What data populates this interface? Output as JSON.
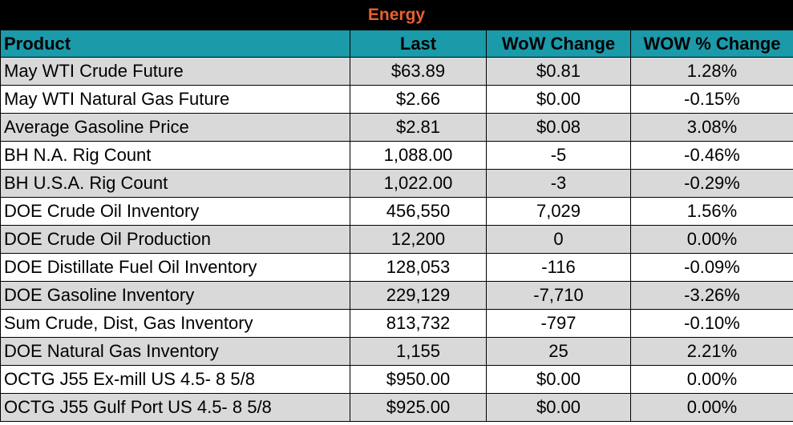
{
  "title": "Energy",
  "colors": {
    "header_bg": "#1b9aaa",
    "title_text": "#e8602c",
    "title_bg": "#000000",
    "alt_row": "#d9d9d9"
  },
  "columns": [
    "Product",
    "Last",
    "WoW Change",
    "WOW % Change"
  ],
  "rows": [
    [
      "May WTI Crude Future",
      "$63.89",
      "$0.81",
      "1.28%"
    ],
    [
      "May WTI Natural Gas Future",
      "$2.66",
      "$0.00",
      "-0.15%"
    ],
    [
      "Average Gasoline Price",
      "$2.81",
      "$0.08",
      "3.08%"
    ],
    [
      "BH N.A. Rig Count",
      "1,088.00",
      "-5",
      "-0.46%"
    ],
    [
      "BH U.S.A. Rig Count",
      "1,022.00",
      "-3",
      "-0.29%"
    ],
    [
      "DOE Crude Oil Inventory",
      "456,550",
      "7,029",
      "1.56%"
    ],
    [
      "DOE Crude Oil Production",
      "12,200",
      "0",
      "0.00%"
    ],
    [
      "DOE Distillate Fuel Oil Inventory",
      "128,053",
      "-116",
      "-0.09%"
    ],
    [
      "DOE Gasoline Inventory",
      "229,129",
      "-7,710",
      "-3.26%"
    ],
    [
      "Sum Crude, Dist, Gas Inventory",
      "813,732",
      "-797",
      "-0.10%"
    ],
    [
      "DOE Natural Gas Inventory",
      "1,155",
      "25",
      "2.21%"
    ],
    [
      "OCTG J55 Ex-mill US 4.5- 8 5/8",
      "$950.00",
      "$0.00",
      "0.00%"
    ],
    [
      "OCTG J55 Gulf Port US 4.5- 8 5/8",
      "$925.00",
      "$0.00",
      "0.00%"
    ]
  ]
}
